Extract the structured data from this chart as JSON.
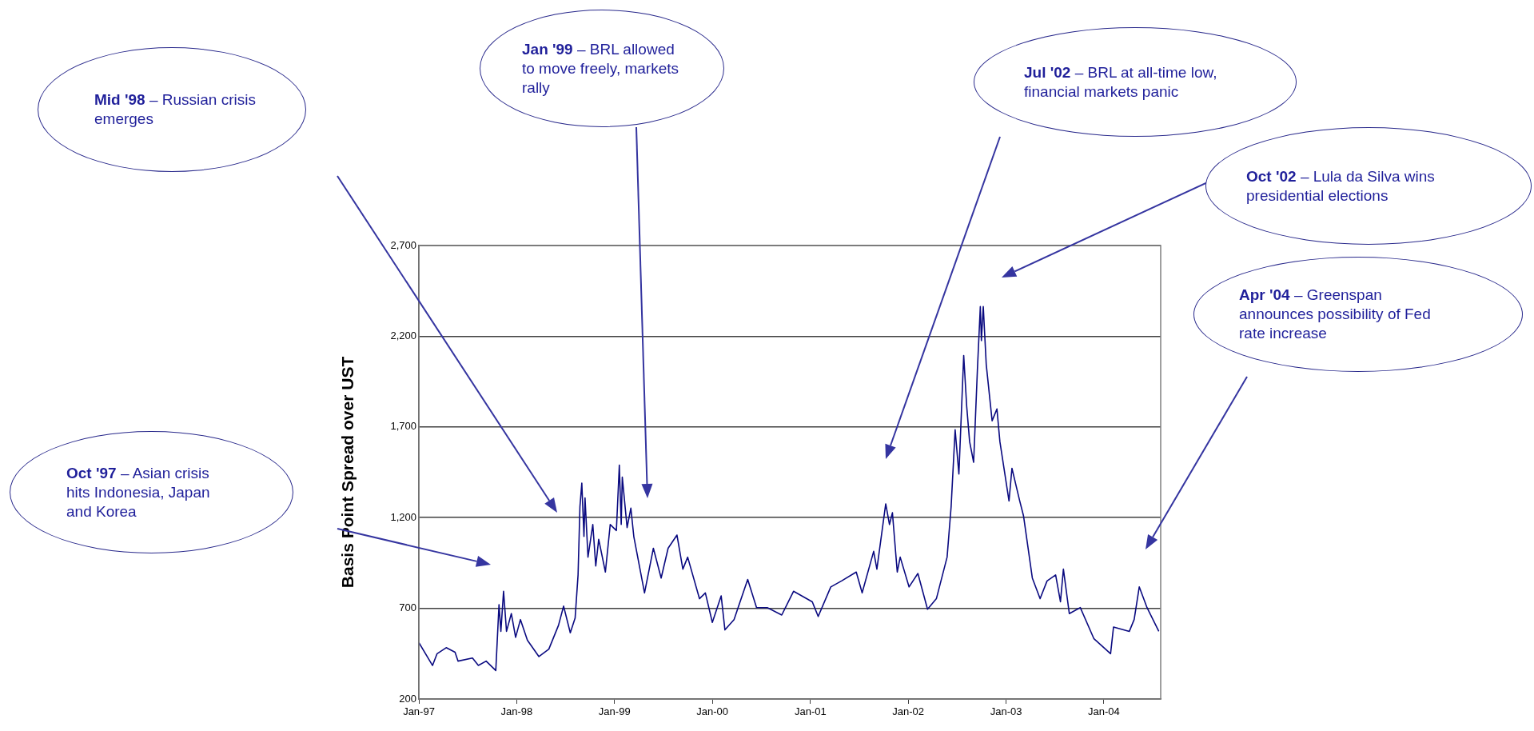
{
  "chart_data": {
    "type": "line",
    "ylabel": "Basis Point Spread over UST",
    "x": [
      "1997-01-01",
      "1997-02-21",
      "1997-03-10",
      "1997-04-13",
      "1997-05-16",
      "1997-05-27",
      "1997-07-20",
      "1997-08-11",
      "1997-09-09",
      "1997-10-15",
      "1997-10-27",
      "1997-11-03",
      "1997-11-13",
      "1997-11-24",
      "1997-12-12",
      "1997-12-28",
      "1998-01-15",
      "1998-02-10",
      "1998-03-25",
      "1998-05-01",
      "1998-06-06",
      "1998-06-25",
      "1998-07-20",
      "1998-08-07",
      "1998-08-18",
      "1998-08-25",
      "1998-09-01",
      "1998-09-09",
      "1998-09-13",
      "1998-09-24",
      "1998-10-12",
      "1998-10-23",
      "1998-11-03",
      "1998-11-28",
      "1998-12-16",
      "1999-01-08",
      "1999-01-19",
      "1999-01-26",
      "1999-01-30",
      "1999-02-17",
      "1999-03-03",
      "1999-03-14",
      "1999-04-23",
      "1999-05-26",
      "1999-06-24",
      "1999-07-20",
      "1999-08-22",
      "1999-09-13",
      "1999-10-01",
      "1999-11-14",
      "1999-12-06",
      "2000-01-01",
      "2000-02-03",
      "2000-02-17",
      "2000-03-22",
      "2000-05-12",
      "2000-06-14",
      "2000-07-24",
      "2000-09-16",
      "2000-10-30",
      "2001-01-08",
      "2001-01-30",
      "2001-03-18",
      "2001-04-27",
      "2001-06-21",
      "2001-07-13",
      "2001-08-25",
      "2001-09-06",
      "2001-10-09",
      "2001-10-23",
      "2001-11-03",
      "2001-11-21",
      "2001-12-02",
      "2002-01-04",
      "2002-02-06",
      "2002-03-14",
      "2002-04-16",
      "2002-05-26",
      "2002-06-10",
      "2002-06-25",
      "2002-07-09",
      "2002-07-27",
      "2002-08-07",
      "2002-08-18",
      "2002-09-02",
      "2002-09-16",
      "2002-09-27",
      "2002-10-01",
      "2002-10-08",
      "2002-10-19",
      "2002-11-10",
      "2002-11-28",
      "2002-12-09",
      "2003-01-12",
      "2003-01-23",
      "2003-02-21",
      "2003-03-07",
      "2003-04-09",
      "2003-05-08",
      "2003-06-03",
      "2003-07-05",
      "2003-07-23",
      "2003-08-03",
      "2003-08-25",
      "2003-10-05",
      "2003-11-25",
      "2004-01-26",
      "2004-02-06",
      "2004-04-05",
      "2004-04-23",
      "2004-05-12",
      "2004-06-10",
      "2004-07-24"
    ],
    "series": [
      {
        "color": "#0a0a80",
        "values": [
          511,
          385,
          450,
          483,
          458,
          409,
          426,
          385,
          409,
          357,
          720,
          573,
          794,
          573,
          671,
          540,
          638,
          524,
          434,
          475,
          606,
          712,
          565,
          646,
          884,
          1260,
          1390,
          1096,
          1309,
          982,
          1162,
          933,
          1080,
          900,
          1162,
          1129,
          1489,
          1162,
          1423,
          1145,
          1252,
          1096,
          785,
          1031,
          867,
          1031,
          1104,
          916,
          982,
          753,
          785,
          622,
          769,
          581,
          638,
          859,
          704,
          704,
          663,
          794,
          736,
          655,
          818,
          851,
          900,
          785,
          1014,
          916,
          1276,
          1162,
          1227,
          900,
          982,
          818,
          892,
          695,
          753,
          982,
          1260,
          1685,
          1440,
          2094,
          1816,
          1619,
          1505,
          2012,
          2364,
          2176,
          2364,
          2045,
          1734,
          1799,
          1619,
          1292,
          1472,
          1292,
          1211,
          867,
          753,
          851,
          884,
          736,
          916,
          671,
          704,
          532,
          450,
          597,
          573,
          638,
          818,
          704,
          573
        ]
      }
    ],
    "xlim": [
      "1997-01-01",
      "2004-07-31"
    ],
    "xticks": [
      {
        "value": "1997-01-01",
        "label": "Jan-97"
      },
      {
        "value": "1998-01-01",
        "label": "Jan-98"
      },
      {
        "value": "1999-01-01",
        "label": "Jan-99"
      },
      {
        "value": "2000-01-01",
        "label": "Jan-00"
      },
      {
        "value": "2001-01-01",
        "label": "Jan-01"
      },
      {
        "value": "2002-01-01",
        "label": "Jan-02"
      },
      {
        "value": "2003-01-01",
        "label": "Jan-03"
      },
      {
        "value": "2004-01-01",
        "label": "Jan-04"
      }
    ],
    "ylim": [
      200,
      2700
    ],
    "yticks": [
      200,
      700,
      {
        "value": 1200,
        "label": "1,200"
      },
      {
        "value": 1700,
        "label": "1,700"
      },
      {
        "value": 2200,
        "label": "2,200"
      },
      {
        "value": 2700,
        "label": "2,700"
      }
    ],
    "grid": "y",
    "legend": false,
    "marker": "none",
    "line_style": "solid",
    "annotations": [
      "Oct '97 – Asian crisis hits Indonesia, Japan and Korea",
      "Mid '98 – Russian crisis emerges",
      "Jan '99 – BRL allowed to move freely, markets rally",
      "Jul '02 – BRL at all-time low, financial markets panic",
      "Oct '02 – Lula da Silva wins presidential elections",
      "Apr '04 – Greenspan announces possibility of Fed rate increase"
    ]
  }
}
